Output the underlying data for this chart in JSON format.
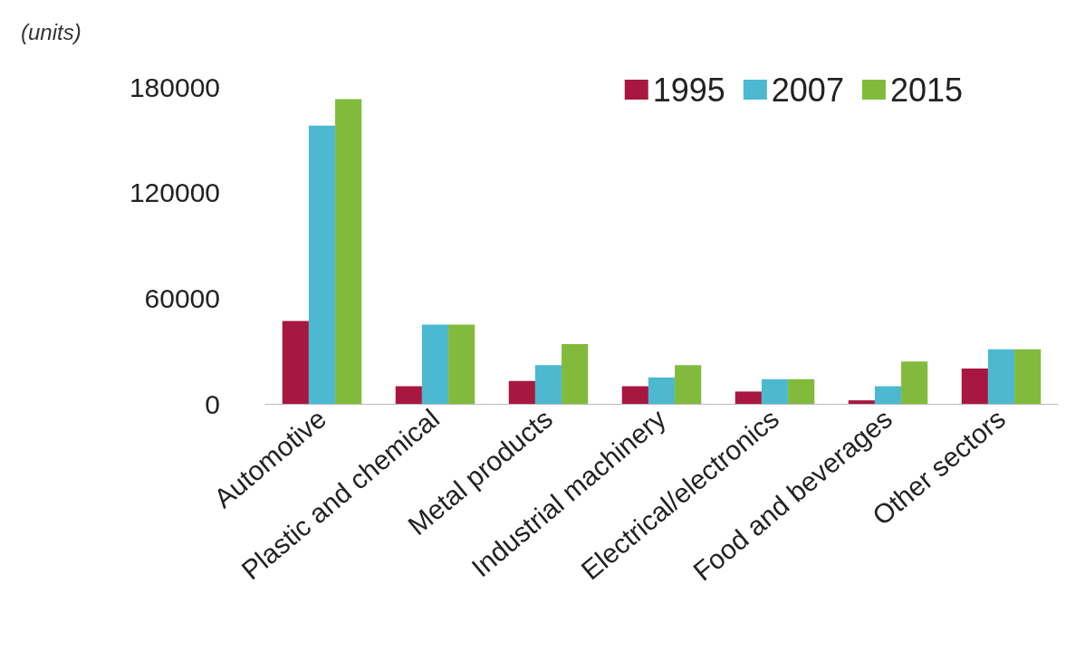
{
  "chart_data": {
    "type": "bar",
    "ylabel": "(units)",
    "categories": [
      "Automotive",
      "Plastic and chemical",
      "Metal products",
      "Industrial machinery",
      "Electrical/electronics",
      "Food and beverages",
      "Other sectors"
    ],
    "series": [
      {
        "name": "1995",
        "color": "#a8173f",
        "values": [
          47000,
          10000,
          13000,
          10000,
          7000,
          2000,
          20000
        ]
      },
      {
        "name": "2007",
        "color": "#4cb9d1",
        "values": [
          158000,
          45000,
          22000,
          15000,
          14000,
          10000,
          31000
        ]
      },
      {
        "name": "2015",
        "color": "#82ba3c",
        "values": [
          173000,
          45000,
          34000,
          22000,
          14000,
          24000,
          31000
        ]
      }
    ],
    "ylim": [
      0,
      180000
    ],
    "yticks": [
      0,
      60000,
      120000,
      180000
    ],
    "grid": false,
    "legend": "top right"
  }
}
